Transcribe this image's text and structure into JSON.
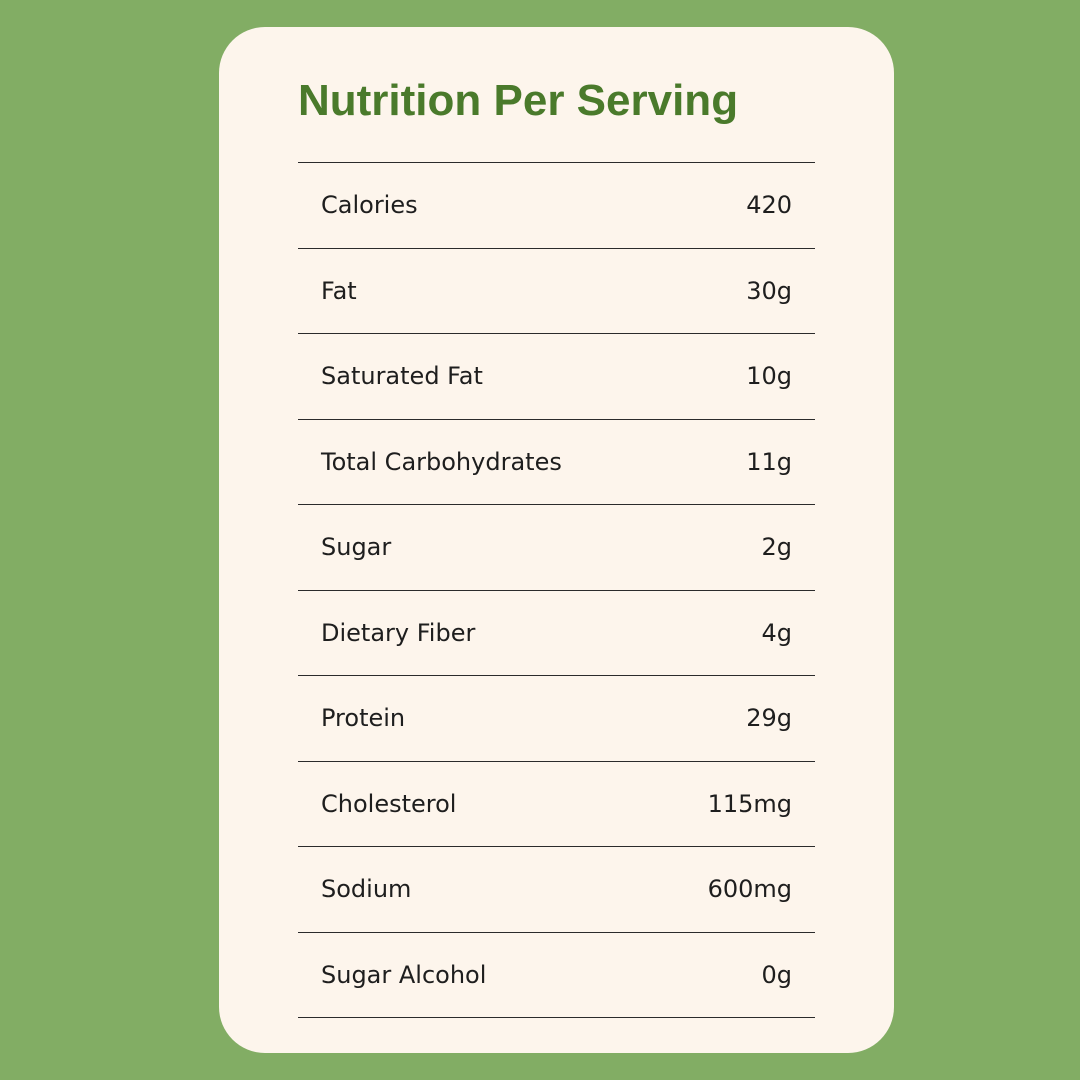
{
  "title": "Nutrition Per Serving",
  "colors": {
    "background": "#82ad64",
    "card": "#fdf5ec",
    "title": "#4a7a2b",
    "text": "#1e1e1e",
    "divider": "#2b2b2b"
  },
  "rows": [
    {
      "label": "Calories",
      "value": "420"
    },
    {
      "label": "Fat",
      "value": "30g"
    },
    {
      "label": "Saturated Fat",
      "value": "10g"
    },
    {
      "label": "Total Carbohydrates",
      "value": "11g"
    },
    {
      "label": "Sugar",
      "value": "2g"
    },
    {
      "label": "Dietary Fiber",
      "value": "4g"
    },
    {
      "label": "Protein",
      "value": "29g"
    },
    {
      "label": "Cholesterol",
      "value": "115mg"
    },
    {
      "label": "Sodium",
      "value": "600mg"
    },
    {
      "label": "Sugar Alcohol",
      "value": "0g"
    }
  ]
}
